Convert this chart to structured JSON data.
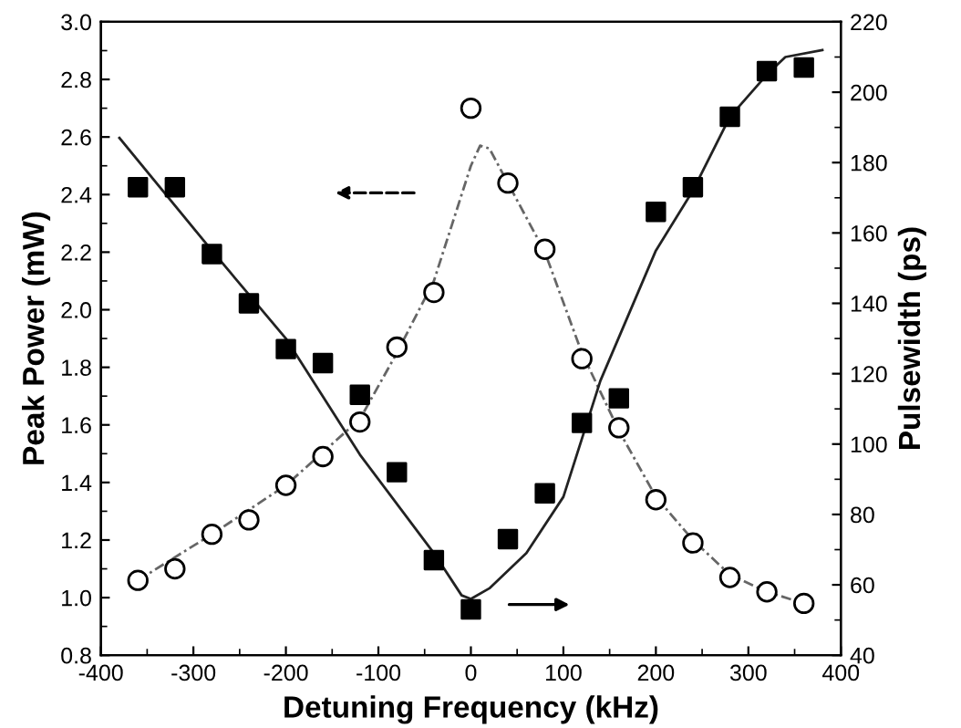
{
  "chart_data": {
    "type": "scatter",
    "xlabel": "Detuning Frequency (kHz)",
    "ylabel": "Peak Power (mW)",
    "y2label": "Pulsewidth (ps)",
    "xlim": [
      -400,
      400
    ],
    "xticks": [
      -400,
      -300,
      -200,
      -100,
      0,
      100,
      200,
      300,
      400
    ],
    "ylim": [
      0.8,
      3.0
    ],
    "yticks": [
      0.8,
      {
        "value": 1,
        "label": "1.0"
      },
      1.2,
      1.4,
      1.6,
      1.8,
      {
        "value": 2,
        "label": "2.0"
      },
      2.2,
      2.4,
      2.6,
      2.8,
      {
        "value": 3,
        "label": "3.0"
      }
    ],
    "y2lim": [
      40,
      220
    ],
    "y2ticks": [
      40,
      60,
      80,
      100,
      120,
      140,
      160,
      180,
      200,
      220
    ],
    "grid": false,
    "legend": false,
    "series": [
      {
        "type": "line",
        "color": "#666666",
        "line_style": "dashed",
        "marker": "none",
        "x": [
          -360,
          -280,
          -200,
          -120,
          -80,
          -40,
          -20,
          0,
          10,
          20,
          40,
          80,
          120,
          160,
          200,
          240,
          280,
          320,
          360
        ],
        "values": [
          1.06,
          1.22,
          1.39,
          1.62,
          1.85,
          2.1,
          2.3,
          2.5,
          2.57,
          2.56,
          2.44,
          2.2,
          1.85,
          1.58,
          1.35,
          1.2,
          1.08,
          1.02,
          0.98
        ]
      },
      {
        "type": "line",
        "axis": "y2",
        "color": "#222222",
        "line_style": "solid",
        "marker": "none",
        "x": [
          -380,
          -280,
          -200,
          -120,
          -40,
          -10,
          0,
          20,
          60,
          100,
          140,
          200,
          240,
          280,
          320,
          340,
          380
        ],
        "values": [
          187,
          155,
          130,
          97,
          69,
          57,
          56,
          59,
          69,
          85,
          118,
          155,
          172,
          193,
          205,
          210,
          212
        ]
      },
      {
        "color": "#000000",
        "marker": "circle",
        "x": [
          -360,
          -320,
          -280,
          -240,
          -200,
          -160,
          -120,
          -80,
          -40,
          0,
          40,
          80,
          120,
          160,
          200,
          240,
          280,
          320,
          360
        ],
        "values": [
          1.06,
          1.1,
          1.22,
          1.27,
          1.39,
          1.49,
          1.61,
          1.87,
          2.06,
          2.7,
          2.44,
          2.21,
          1.83,
          1.59,
          1.34,
          1.19,
          1.07,
          1.02,
          0.98
        ]
      },
      {
        "axis": "y2",
        "color": "#000000",
        "marker": "square",
        "x": [
          -360,
          -320,
          -280,
          -240,
          -200,
          -160,
          -120,
          -80,
          -40,
          0,
          40,
          80,
          120,
          160,
          200,
          240,
          280,
          320,
          360
        ],
        "values": [
          173,
          173,
          154,
          140,
          127,
          123,
          114,
          92,
          67,
          53,
          73,
          86,
          106,
          113,
          166,
          173,
          193,
          206,
          207
        ]
      }
    ]
  }
}
